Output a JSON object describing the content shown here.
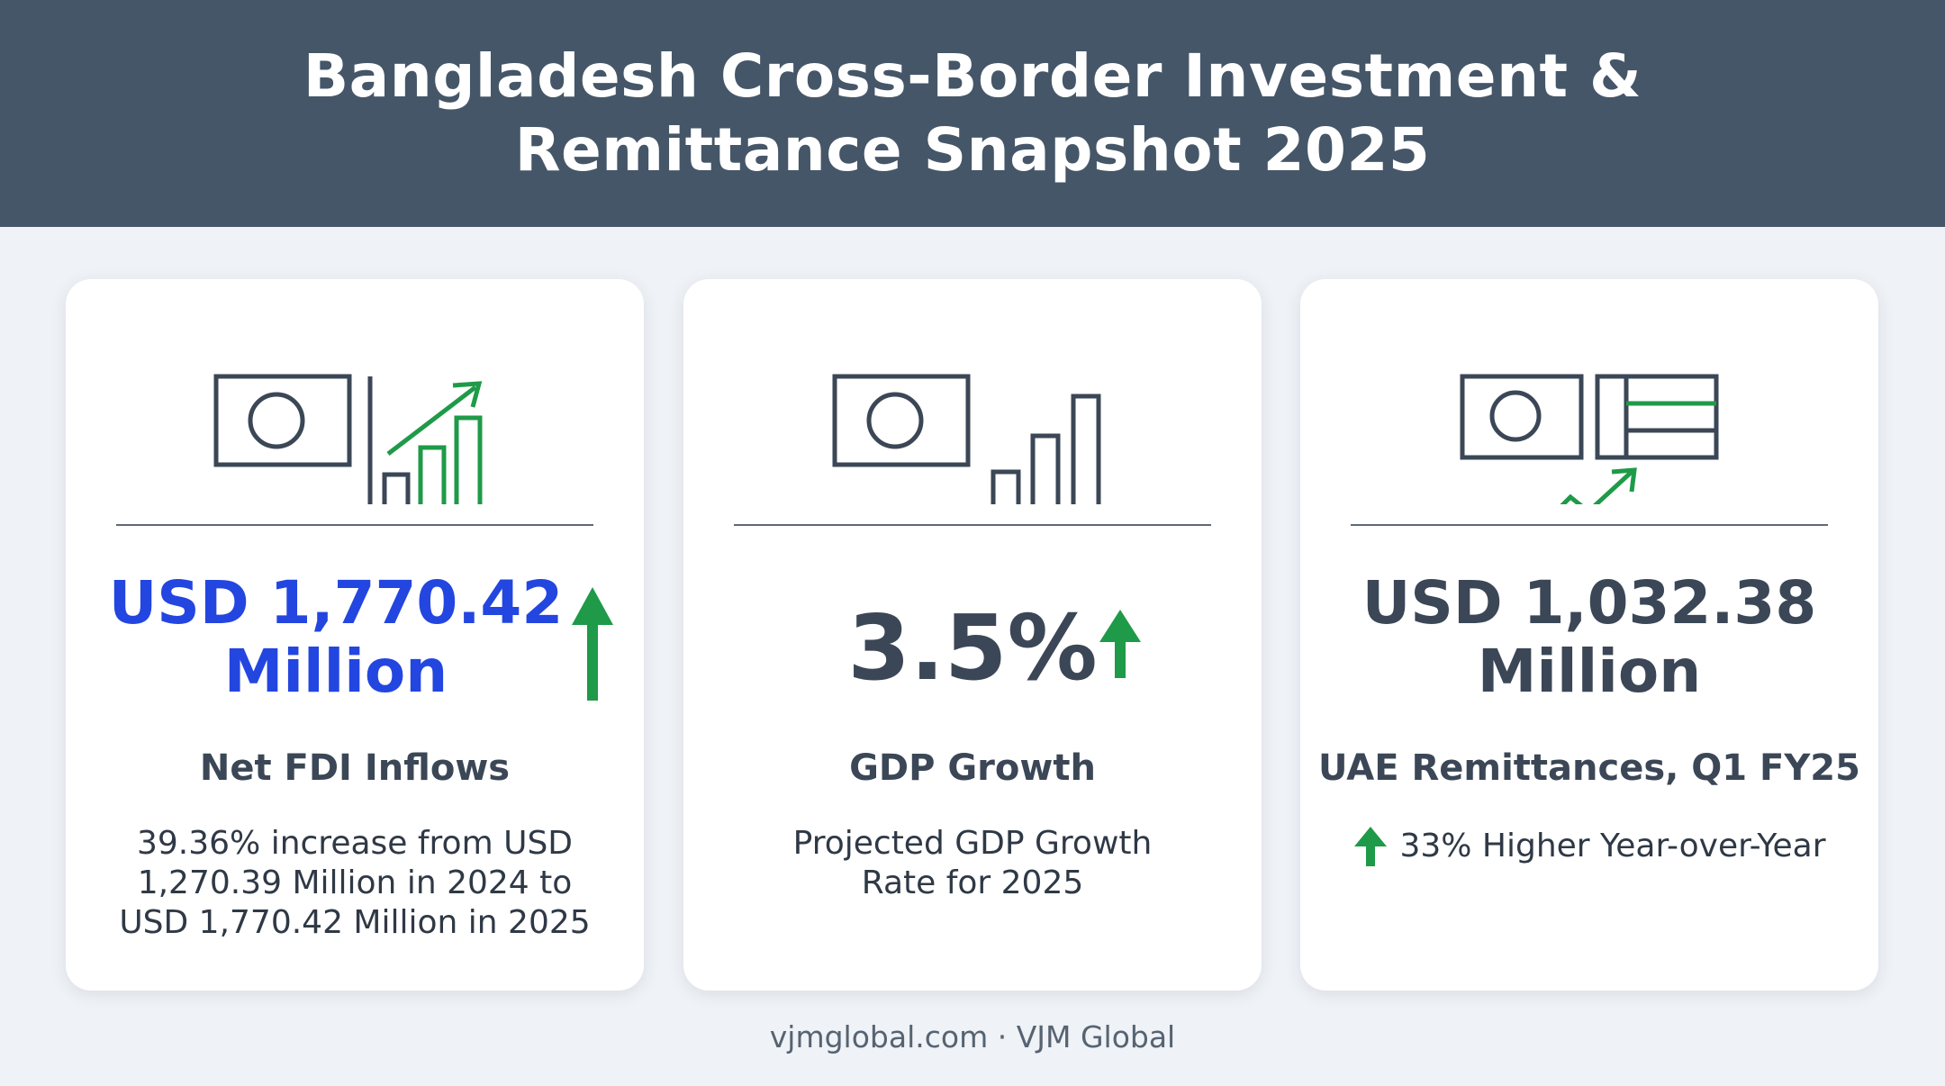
{
  "header": {
    "title": "Bangladesh Cross-Border Investment & Remittance Snapshot 2025"
  },
  "cards": [
    {
      "value_line1": "USD 1,770.42",
      "value_line2": "Million",
      "label": "Net FDI Inflows",
      "description": "39.36% increase from USD 1,270.39 Million in 2024 to USD 1,770.42 Million in 2025",
      "value_color": "#2346e0",
      "icons": [
        "flag-icon",
        "bar-chart-growth-icon",
        "up-arrow-icon"
      ]
    },
    {
      "value": "3.5%",
      "label": "GDP Growth",
      "description": "Projected GDP Growth Rate for 2025",
      "value_color": "#3b4756",
      "icons": [
        "flag-icon",
        "bar-chart-icon",
        "up-arrow-icon"
      ]
    },
    {
      "value_line1": "USD 1,032.38",
      "value_line2": "Million",
      "label": "UAE Remittances, Q1 FY25",
      "description": "33% Higher Year-over-Year",
      "value_color": "#3b4756",
      "icons": [
        "bangladesh-flag-icon",
        "uae-flag-icon",
        "trend-up-icon",
        "up-arrow-icon"
      ]
    }
  ],
  "footer": {
    "text": "vjmglobal.com · VJM Global"
  },
  "colors": {
    "header_bg": "#455668",
    "accent_blue": "#2346e0",
    "accent_green": "#1f9a48",
    "text_dark": "#3b4756",
    "page_bg": "#eff2f6"
  }
}
